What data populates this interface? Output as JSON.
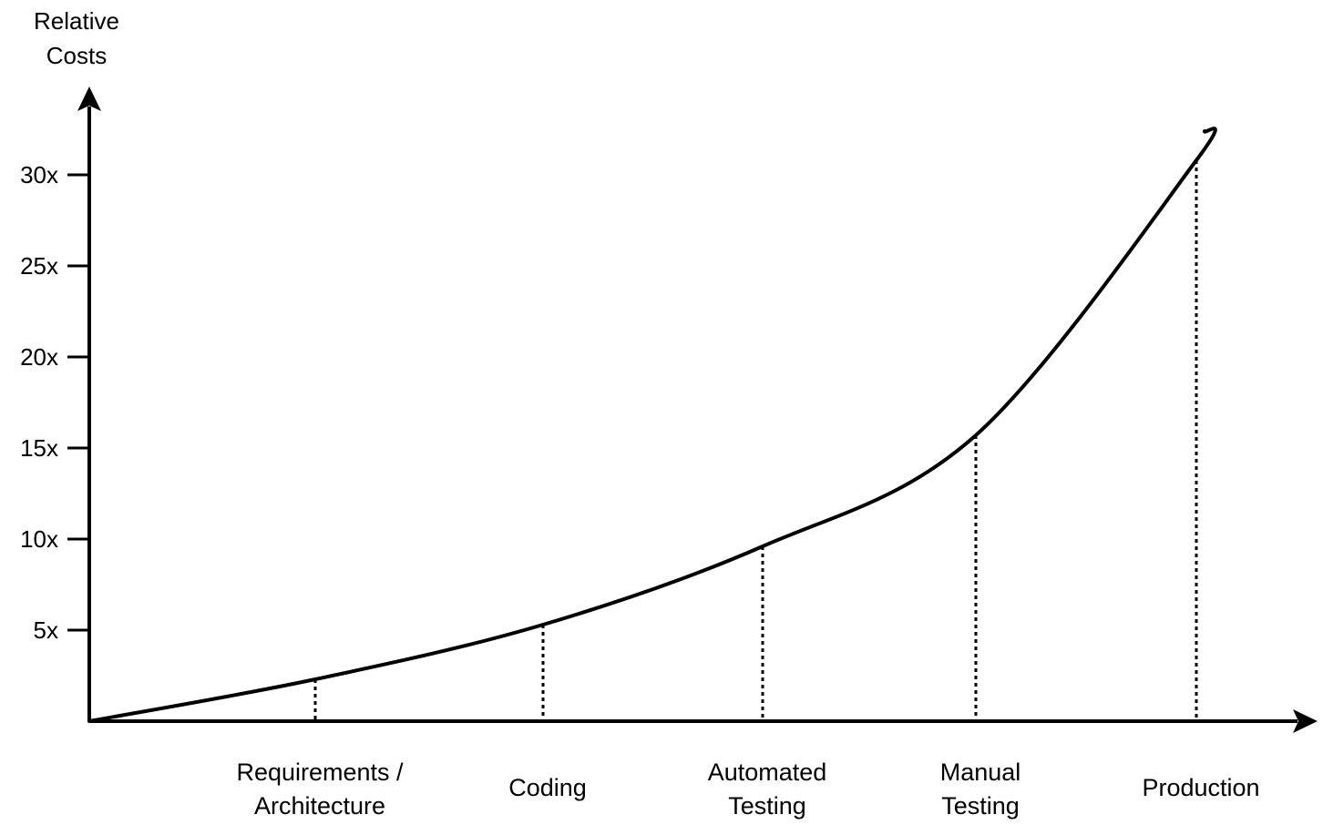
{
  "chart_data": {
    "type": "line",
    "title": "",
    "ylabel": [
      "Relative",
      "Costs"
    ],
    "xlabel": "",
    "ylim": [
      0,
      32
    ],
    "yticks": [
      {
        "value": 5,
        "label": "5x"
      },
      {
        "value": 10,
        "label": "10x"
      },
      {
        "value": 15,
        "label": "15x"
      },
      {
        "value": 20,
        "label": "20x"
      },
      {
        "value": 25,
        "label": "25x"
      },
      {
        "value": 30,
        "label": "30x"
      }
    ],
    "categories": [
      {
        "lines": [
          "Requirements /",
          "Architecture"
        ],
        "value": 2.3
      },
      {
        "lines": [
          "Coding"
        ],
        "value": 5.3
      },
      {
        "lines": [
          "Automated",
          "Testing"
        ],
        "value": 9.6
      },
      {
        "lines": [
          "Manual",
          "Testing"
        ],
        "value": 15.7
      },
      {
        "lines": [
          "Production"
        ],
        "value": 30.8
      }
    ],
    "curve_end_value": 32.4,
    "grid": false,
    "legend": "none",
    "colors": {
      "line": "#000000",
      "axis": "#000000",
      "background": "#ffffff"
    }
  }
}
